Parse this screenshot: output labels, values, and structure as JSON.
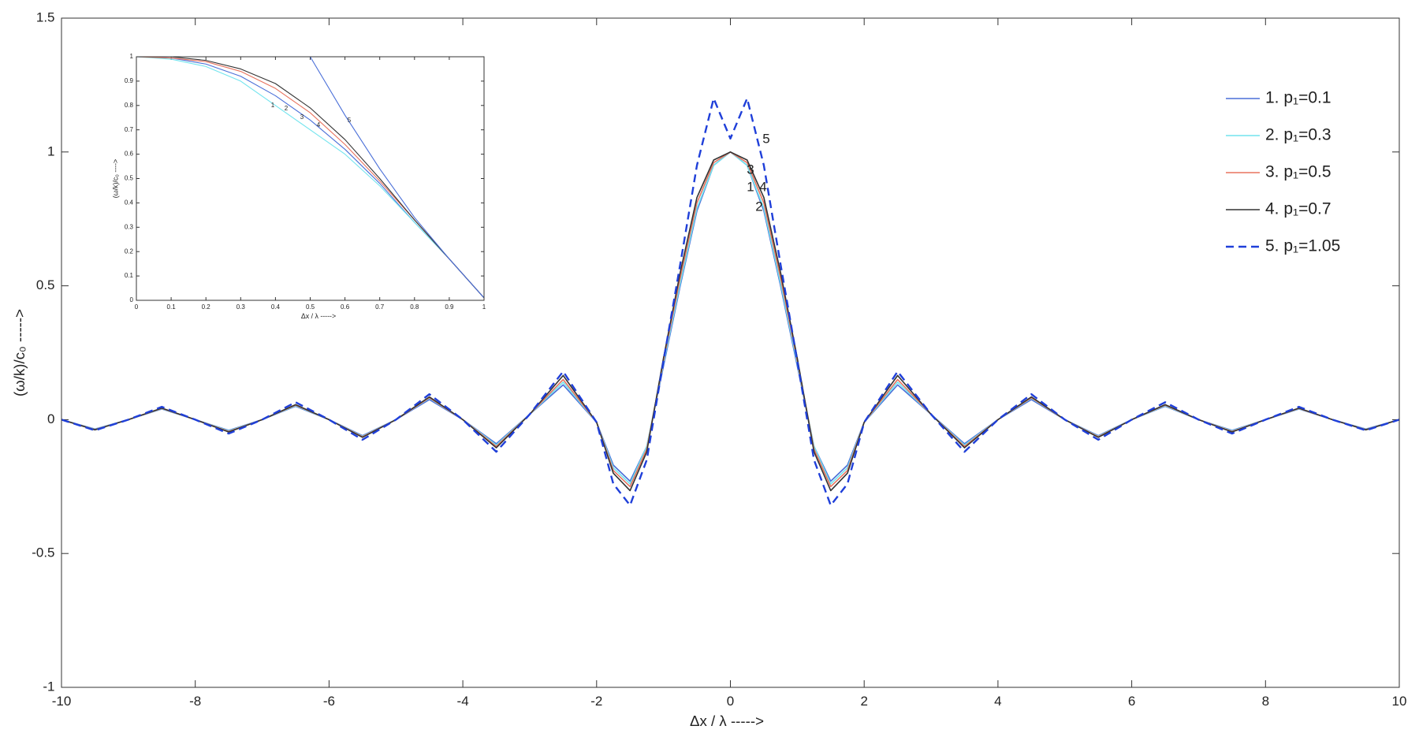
{
  "chart_data": [
    {
      "type": "line",
      "x_label": "Δx / λ ----->",
      "y_label": "(ω/k)/c₀ ----->",
      "x": [
        -10,
        -9.5,
        -9,
        -8.5,
        -8,
        -7.5,
        -7,
        -6.5,
        -6,
        -5.5,
        -5,
        -4.5,
        -4,
        -3.5,
        -3,
        -2.5,
        -2,
        -1.75,
        -1.5,
        -1.25,
        -1,
        -0.75,
        -0.5,
        -0.25,
        0,
        0.25,
        0.5,
        0.75,
        1,
        1.25,
        1.5,
        1.75,
        2,
        2.5,
        3,
        3.5,
        4,
        4.5,
        5,
        5.5,
        6,
        6.5,
        7,
        7.5,
        8,
        8.5,
        9,
        9.5,
        10
      ],
      "series": [
        {
          "name": "1.  p₁=0.1",
          "color": "#4a6fd8",
          "style": "solid",
          "values": [
            0,
            -0.035,
            0,
            0.04,
            0,
            -0.04,
            0,
            0.05,
            0,
            -0.06,
            0,
            0.075,
            0,
            -0.09,
            0.02,
            0.13,
            -0.01,
            -0.17,
            -0.23,
            -0.1,
            0.2,
            0.5,
            0.78,
            0.95,
            1,
            0.95,
            0.78,
            0.5,
            0.2,
            -0.1,
            -0.23,
            -0.17,
            -0.01,
            0.13,
            0.02,
            -0.09,
            0,
            0.075,
            0,
            -0.06,
            0,
            0.05,
            0,
            -0.04,
            0,
            0.04,
            0,
            -0.035,
            0
          ]
        },
        {
          "name": "2.  p₁=0.3",
          "color": "#72e4ee",
          "style": "solid",
          "values": [
            0,
            -0.036,
            0,
            0.041,
            0,
            -0.042,
            0,
            0.052,
            0,
            -0.062,
            0,
            0.08,
            0,
            -0.095,
            0.02,
            0.14,
            -0.01,
            -0.18,
            -0.24,
            -0.1,
            0.21,
            0.51,
            0.79,
            0.95,
            1,
            0.95,
            0.79,
            0.51,
            0.21,
            -0.1,
            -0.24,
            -0.18,
            -0.01,
            0.14,
            0.02,
            -0.095,
            0,
            0.08,
            0,
            -0.062,
            0,
            0.052,
            0,
            -0.042,
            0,
            0.041,
            0,
            -0.036,
            0
          ]
        },
        {
          "name": "3.  p₁=0.5",
          "color": "#e8735e",
          "style": "solid",
          "values": [
            0,
            -0.037,
            0,
            0.042,
            0,
            -0.044,
            0,
            0.054,
            0,
            -0.064,
            0,
            0.082,
            0,
            -0.1,
            0.02,
            0.15,
            -0.01,
            -0.19,
            -0.25,
            -0.11,
            0.22,
            0.53,
            0.81,
            0.96,
            1,
            0.96,
            0.81,
            0.53,
            0.22,
            -0.11,
            -0.25,
            -0.19,
            -0.01,
            0.15,
            0.02,
            -0.1,
            0,
            0.082,
            0,
            -0.064,
            0,
            0.054,
            0,
            -0.044,
            0,
            0.042,
            0,
            -0.037,
            0
          ]
        },
        {
          "name": "4.  p₁=0.7",
          "color": "#333333",
          "style": "solid",
          "values": [
            0,
            -0.038,
            0,
            0.043,
            0,
            -0.046,
            0,
            0.056,
            0,
            -0.066,
            0,
            0.085,
            0,
            -0.105,
            0.02,
            0.165,
            -0.01,
            -0.2,
            -0.265,
            -0.12,
            0.23,
            0.55,
            0.83,
            0.97,
            1,
            0.97,
            0.83,
            0.55,
            0.23,
            -0.12,
            -0.265,
            -0.2,
            -0.01,
            0.165,
            0.02,
            -0.105,
            0,
            0.085,
            0,
            -0.066,
            0,
            0.056,
            0,
            -0.046,
            0,
            0.043,
            0,
            -0.038,
            0
          ]
        },
        {
          "name": "5.  p₁=1.05",
          "color": "#1f3fd9",
          "style": "dashed",
          "values": [
            0,
            -0.04,
            0,
            0.048,
            0,
            -0.052,
            0,
            0.065,
            0,
            -0.075,
            0,
            0.095,
            0,
            -0.12,
            0.02,
            0.18,
            -0.01,
            -0.24,
            -0.32,
            -0.15,
            0.22,
            0.58,
            0.95,
            1.2,
            1.05,
            1.2,
            0.95,
            0.58,
            0.22,
            -0.15,
            -0.32,
            -0.24,
            -0.01,
            0.18,
            0.02,
            -0.12,
            0,
            0.095,
            0,
            -0.075,
            0,
            0.065,
            0,
            -0.052,
            0,
            0.048,
            0,
            -0.04,
            0
          ]
        }
      ],
      "annotations": [
        "5",
        "3",
        "1",
        "4",
        "2"
      ],
      "xlim": [
        -10,
        10
      ],
      "xticks": [
        -10,
        -8,
        -6,
        -4,
        -2,
        0,
        2,
        4,
        6,
        8,
        10
      ],
      "ylim": [
        -1,
        1.5
      ],
      "yticks": [
        -1,
        -0.5,
        0,
        0.5,
        1,
        1.5
      ],
      "grid": false,
      "legend": "upper right"
    },
    {
      "type": "line",
      "x_label": "Δx / λ ----->",
      "y_label": "(ω/k)/c₀ ---->",
      "x": [
        0,
        0.1,
        0.2,
        0.3,
        0.4,
        0.5,
        0.6,
        0.7,
        0.8,
        0.9,
        1
      ],
      "series": [
        {
          "color": "#4a6fd8",
          "style": "solid",
          "values": [
            1,
            0.995,
            0.97,
            0.92,
            0.84,
            0.74,
            0.62,
            0.48,
            0.32,
            0.17,
            0.01
          ]
        },
        {
          "color": "#72e4ee",
          "style": "solid",
          "values": [
            1,
            0.99,
            0.96,
            0.9,
            0.8,
            0.7,
            0.6,
            0.47,
            0.32,
            0.17,
            0.01
          ]
        },
        {
          "color": "#e8735e",
          "style": "solid",
          "values": [
            1,
            0.995,
            0.98,
            0.94,
            0.87,
            0.77,
            0.64,
            0.49,
            0.33,
            0.17,
            0.01
          ]
        },
        {
          "color": "#333333",
          "style": "solid",
          "values": [
            1,
            1,
            0.985,
            0.95,
            0.89,
            0.79,
            0.66,
            0.5,
            0.33,
            0.17,
            0.01
          ]
        },
        {
          "color": "#4a6fd8",
          "style": "solid",
          "values": [
            null,
            null,
            null,
            null,
            null,
            1,
            0.76,
            0.54,
            0.34,
            0.17,
            0.01
          ]
        }
      ],
      "annotations": [
        "1",
        "2",
        "3",
        "4",
        "5"
      ],
      "xlim": [
        0,
        1
      ],
      "xticks": [
        0,
        0.1,
        0.2,
        0.3,
        0.4,
        0.5,
        0.6,
        0.7,
        0.8,
        0.9,
        1
      ],
      "ylim": [
        0,
        1
      ],
      "yticks": [
        0,
        0.1,
        0.2,
        0.3,
        0.4,
        0.5,
        0.6,
        0.7,
        0.8,
        0.9,
        1
      ],
      "grid": false
    }
  ]
}
